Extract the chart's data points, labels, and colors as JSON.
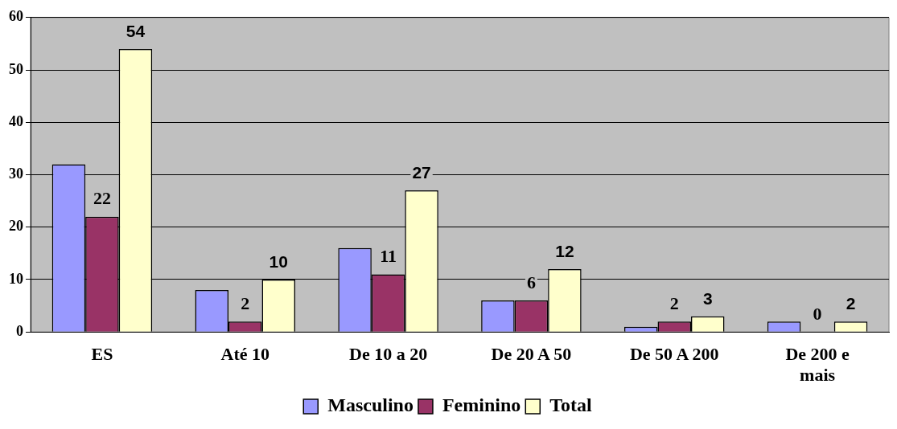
{
  "chart_data": {
    "type": "bar",
    "categories": [
      "ES",
      "Até 10",
      "De 10 a 20",
      "De 20 A 50",
      "De 50 A 200",
      "De 200 e mais"
    ],
    "series": [
      {
        "name": "Masculino",
        "color": "#9999ff",
        "values": [
          32,
          8,
          16,
          6,
          1,
          2
        ]
      },
      {
        "name": "Feminino",
        "color": "#993366",
        "values": [
          22,
          2,
          11,
          6,
          2,
          0
        ],
        "value_labels": [
          "22",
          "2",
          "11",
          "6",
          "2",
          "0"
        ]
      },
      {
        "name": "Total",
        "color": "#ffffcc",
        "values": [
          54,
          10,
          27,
          12,
          3,
          2
        ],
        "value_labels": [
          "54",
          "10",
          "27",
          "12",
          "3",
          "2"
        ]
      }
    ],
    "ylim": [
      0,
      60
    ],
    "yticks": [
      0,
      10,
      20,
      30,
      40,
      50,
      60
    ],
    "grid": "y",
    "legend": "bottom"
  }
}
